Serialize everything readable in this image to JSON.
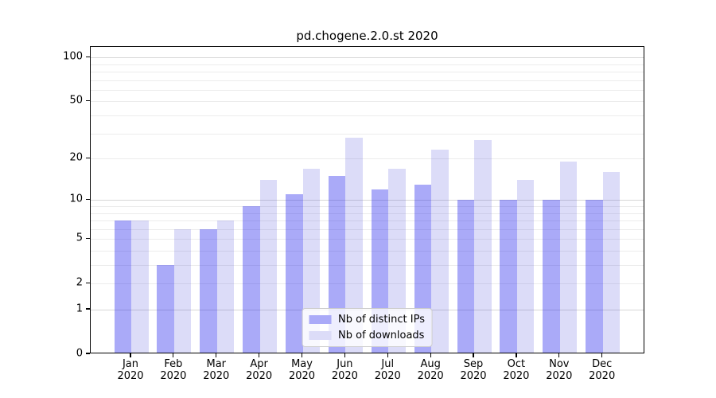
{
  "title": "pd.chogene.2.0.st 2020",
  "legend": {
    "item1_label": "Nb of distinct IPs",
    "item2_label": "Nb of downloads"
  },
  "chart_data": {
    "type": "bar",
    "title": "pd.chogene.2.0.st 2020",
    "categories": [
      "Jan 2020",
      "Feb 2020",
      "Mar 2020",
      "Apr 2020",
      "May 2020",
      "Jun 2020",
      "Jul 2020",
      "Aug 2020",
      "Sep 2020",
      "Oct 2020",
      "Nov 2020",
      "Dec 2020"
    ],
    "months": [
      "Jan",
      "Feb",
      "Mar",
      "Apr",
      "May",
      "Jun",
      "Jul",
      "Aug",
      "Sep",
      "Oct",
      "Nov",
      "Dec"
    ],
    "year": "2020",
    "series": [
      {
        "name": "Nb of distinct IPs",
        "values": [
          7,
          3,
          6,
          9,
          11,
          15,
          12,
          13,
          10,
          10,
          10,
          10
        ],
        "color": "#aaaaf8",
        "rgba": "rgba(43,43,238,0.40)"
      },
      {
        "name": "Nb of downloads",
        "values": [
          7,
          6,
          7,
          14,
          17,
          28,
          17,
          23,
          27,
          14,
          19,
          16
        ],
        "color": "#dcdcf8",
        "rgba": "rgba(80,80,220,0.20)"
      }
    ],
    "yscale": "log1p",
    "yticks": [
      0,
      1,
      2,
      5,
      10,
      20,
      50,
      100
    ],
    "ytick_labels": [
      "0",
      "1",
      "2",
      "5",
      "10",
      "20",
      "50",
      "100"
    ],
    "ylim": [
      0,
      118
    ],
    "grid": true,
    "grid_major": [
      1,
      10,
      100
    ],
    "grid_minor": [
      2,
      3,
      4,
      5,
      6,
      7,
      8,
      9,
      20,
      30,
      40,
      50,
      60,
      70,
      80,
      90
    ],
    "legend_position": "lower center",
    "background": "#ffffff",
    "axis_color": "#000000"
  }
}
